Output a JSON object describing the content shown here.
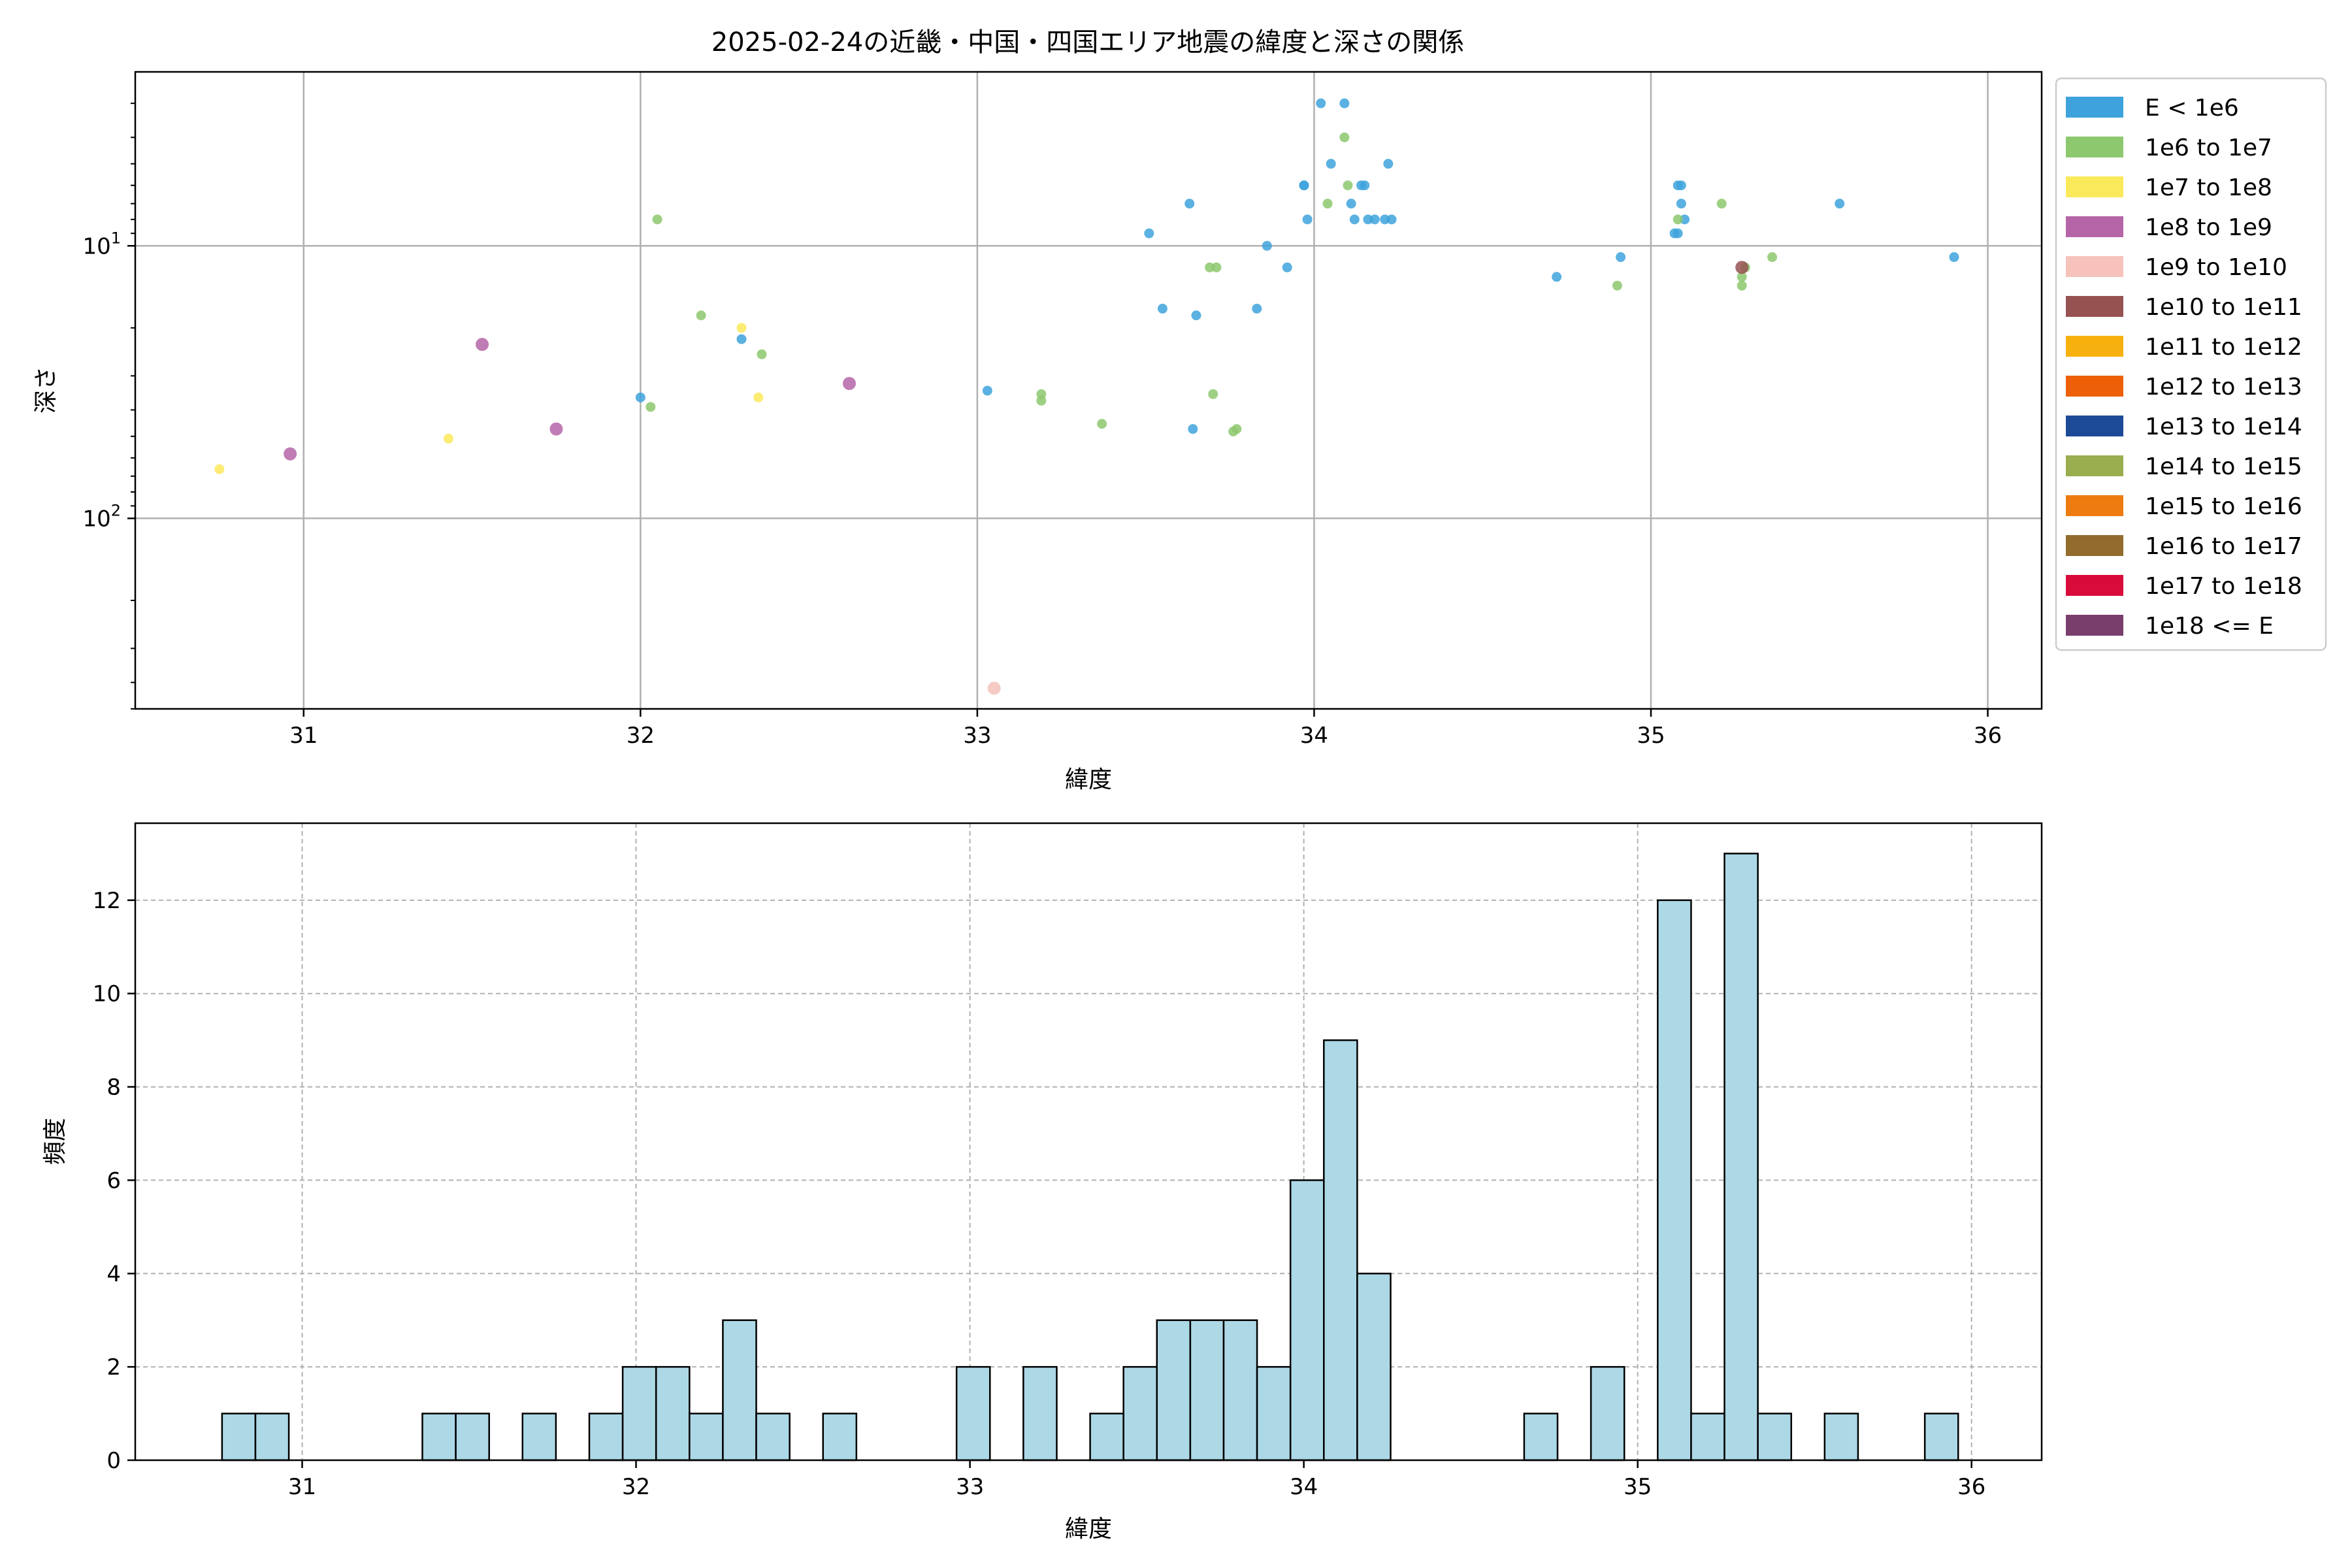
{
  "colors": {
    "E < 1e6": "#3ea3dc",
    "1e6 to 1e7": "#8dc86e",
    "1e7 to 1e8": "#fbe95c",
    "1e8 to 1e9": "#b565a7",
    "1e9 to 1e10": "#f6c2bb",
    "1e10 to 1e11": "#955251",
    "1e11 to 1e12": "#f6b10e",
    "1e12 to 1e13": "#ed6008",
    "1e13 to 1e14": "#1c4a96",
    "1e14 to 1e15": "#9aad4f",
    "1e15 to 1e16": "#ee7b10",
    "1e16 to 1e17": "#926b2d",
    "1e17 to 1e18": "#d90b3b",
    "1e18 <= E": "#7a3e6d",
    "histogram_fill": "#add8e6",
    "grid": "#b0b0b0"
  },
  "chart_data": [
    {
      "type": "scatter",
      "title": "2025-02-24の近畿・中国・四国エリア地震の緯度と深さの関係",
      "xlabel": "緯度",
      "ylabel": "深さ",
      "xlim": [
        30.5,
        36.16
      ],
      "ylim": [
        500,
        2.3
      ],
      "yscale": "log",
      "y_inverted": true,
      "grid": true,
      "legend_placement": "outside-right",
      "x_ticks": [
        "31",
        "32",
        "33",
        "34",
        "35",
        "36"
      ],
      "y_ticks": [
        {
          "value": 10,
          "base": "10",
          "exp": "1"
        },
        {
          "value": 100,
          "base": "10",
          "exp": "2"
        }
      ],
      "legend": [
        "E < 1e6",
        "1e6 to 1e7",
        "1e7 to 1e8",
        "1e8 to 1e9",
        "1e9 to 1e10",
        "1e10 to 1e11",
        "1e11 to 1e12",
        "1e12 to 1e13",
        "1e13 to 1e14",
        "1e14 to 1e15",
        "1e15 to 1e16",
        "1e16 to 1e17",
        "1e17 to 1e18",
        "1e18 <= E"
      ],
      "series": [
        {
          "name": "E < 1e6",
          "points": [
            [
              32.0,
              36
            ],
            [
              32.3,
              22
            ],
            [
              33.03,
              34
            ],
            [
              33.51,
              9
            ],
            [
              33.55,
              17
            ],
            [
              33.63,
              7
            ],
            [
              33.64,
              47
            ],
            [
              33.65,
              18
            ],
            [
              33.83,
              17
            ],
            [
              33.86,
              10
            ],
            [
              33.92,
              12
            ],
            [
              33.97,
              6
            ],
            [
              33.97,
              6
            ],
            [
              33.98,
              8
            ],
            [
              34.02,
              3
            ],
            [
              34.05,
              5
            ],
            [
              34.09,
              3
            ],
            [
              34.11,
              7
            ],
            [
              34.12,
              8
            ],
            [
              34.14,
              6
            ],
            [
              34.15,
              6
            ],
            [
              34.16,
              8
            ],
            [
              34.18,
              8
            ],
            [
              34.21,
              8
            ],
            [
              34.22,
              5
            ],
            [
              34.23,
              8
            ],
            [
              34.72,
              13
            ],
            [
              34.91,
              11
            ],
            [
              35.07,
              9
            ],
            [
              35.08,
              9
            ],
            [
              35.08,
              6
            ],
            [
              35.09,
              6
            ],
            [
              35.09,
              7
            ],
            [
              35.1,
              8
            ],
            [
              35.56,
              7
            ],
            [
              35.9,
              11
            ]
          ]
        },
        {
          "name": "1e6 to 1e7",
          "points": [
            [
              32.03,
              39
            ],
            [
              32.05,
              8
            ],
            [
              32.18,
              18
            ],
            [
              32.36,
              25
            ],
            [
              33.19,
              35
            ],
            [
              33.19,
              37
            ],
            [
              33.37,
              45
            ],
            [
              33.69,
              12
            ],
            [
              33.7,
              35
            ],
            [
              33.71,
              12
            ],
            [
              33.76,
              48
            ],
            [
              33.77,
              47
            ],
            [
              34.04,
              7
            ],
            [
              34.09,
              4
            ],
            [
              34.1,
              6
            ],
            [
              34.9,
              14
            ],
            [
              35.08,
              8
            ],
            [
              35.21,
              7
            ],
            [
              35.27,
              13
            ],
            [
              35.27,
              14
            ],
            [
              35.28,
              12
            ],
            [
              35.36,
              11
            ]
          ]
        },
        {
          "name": "1e7 to 1e8",
          "points": [
            [
              30.75,
              66
            ],
            [
              31.43,
              51
            ],
            [
              32.3,
              20
            ],
            [
              32.35,
              36
            ]
          ]
        },
        {
          "name": "1e8 to 1e9",
          "points": [
            [
              30.96,
              58
            ],
            [
              31.53,
              23
            ],
            [
              31.75,
              47
            ],
            [
              32.62,
              32
            ]
          ]
        },
        {
          "name": "1e9 to 1e10",
          "points": [
            [
              33.05,
              420
            ]
          ]
        },
        {
          "name": "1e10 to 1e11",
          "points": [
            [
              35.27,
              12
            ]
          ]
        }
      ]
    },
    {
      "type": "bar",
      "title": "",
      "xlabel": "緯度",
      "ylabel": "頻度",
      "xlim": [
        30.5,
        36.21
      ],
      "ylim": [
        0,
        13.65
      ],
      "grid": "dashed",
      "bin_width": 0.1,
      "x_ticks": [
        "31",
        "32",
        "33",
        "34",
        "35",
        "36"
      ],
      "y_ticks": [
        "0",
        "2",
        "4",
        "6",
        "8",
        "10",
        "12"
      ],
      "bins": [
        {
          "left": 30.76,
          "count": 1
        },
        {
          "left": 30.86,
          "count": 1
        },
        {
          "left": 31.36,
          "count": 1
        },
        {
          "left": 31.46,
          "count": 1
        },
        {
          "left": 31.66,
          "count": 1
        },
        {
          "left": 31.86,
          "count": 1
        },
        {
          "left": 31.96,
          "count": 2
        },
        {
          "left": 32.06,
          "count": 2
        },
        {
          "left": 32.16,
          "count": 1
        },
        {
          "left": 32.26,
          "count": 3
        },
        {
          "left": 32.36,
          "count": 1
        },
        {
          "left": 32.56,
          "count": 1
        },
        {
          "left": 32.96,
          "count": 2
        },
        {
          "left": 33.16,
          "count": 2
        },
        {
          "left": 33.36,
          "count": 1
        },
        {
          "left": 33.46,
          "count": 2
        },
        {
          "left": 33.56,
          "count": 3
        },
        {
          "left": 33.66,
          "count": 3
        },
        {
          "left": 33.76,
          "count": 3
        },
        {
          "left": 33.86,
          "count": 2
        },
        {
          "left": 33.96,
          "count": 6
        },
        {
          "left": 34.06,
          "count": 9
        },
        {
          "left": 34.16,
          "count": 4
        },
        {
          "left": 34.66,
          "count": 1
        },
        {
          "left": 34.86,
          "count": 2
        },
        {
          "left": 35.06,
          "count": 12
        },
        {
          "left": 35.16,
          "count": 1
        },
        {
          "left": 35.26,
          "count": 13
        },
        {
          "left": 35.36,
          "count": 1
        },
        {
          "left": 35.56,
          "count": 1
        },
        {
          "left": 35.86,
          "count": 1
        }
      ]
    }
  ]
}
